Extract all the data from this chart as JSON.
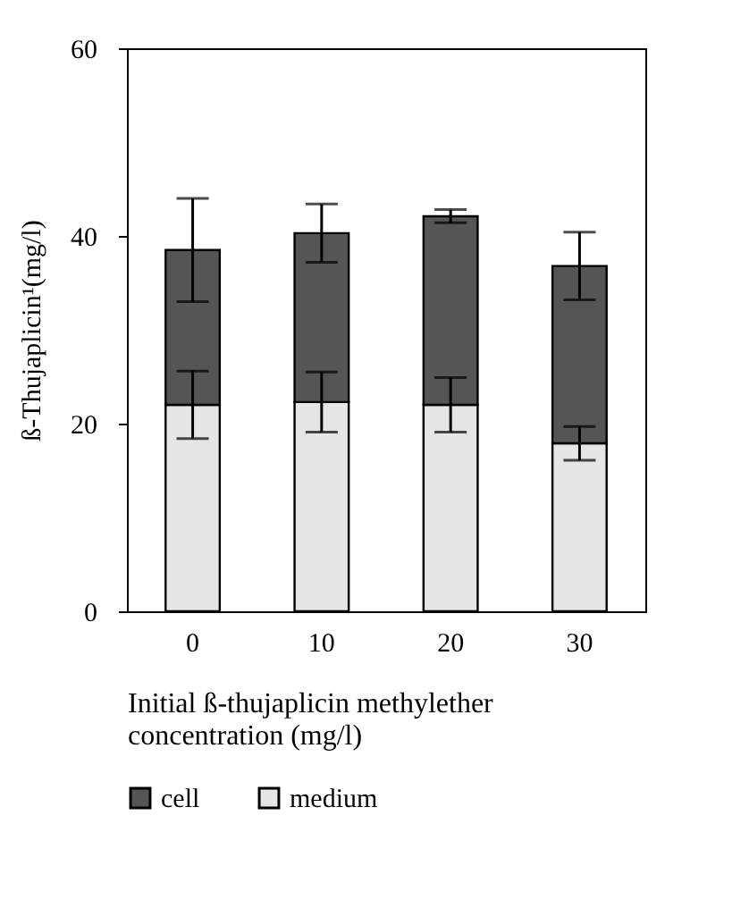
{
  "chart_data": {
    "type": "bar",
    "stacked": true,
    "xlabel": "Initial ß-thujaplicin methylether concentration (mg/l)",
    "ylabel": "ß-Thujaplicin¹(mg/l)",
    "categories": [
      "0",
      "10",
      "20",
      "30"
    ],
    "series": [
      {
        "name": "medium",
        "color": "#e6e6e6",
        "values": [
          22.0,
          22.3,
          22.0,
          17.9
        ],
        "errors": [
          3.6,
          3.2,
          2.9,
          1.8
        ]
      },
      {
        "name": "cell",
        "color": "#555555",
        "values": [
          16.5,
          18.0,
          20.1,
          18.9
        ],
        "errors": [
          5.5,
          3.1,
          0.7,
          3.6
        ]
      }
    ],
    "ylim": [
      0,
      60
    ],
    "yticks": [
      0,
      20,
      40,
      60
    ],
    "grid": false,
    "legend": "bottom"
  }
}
